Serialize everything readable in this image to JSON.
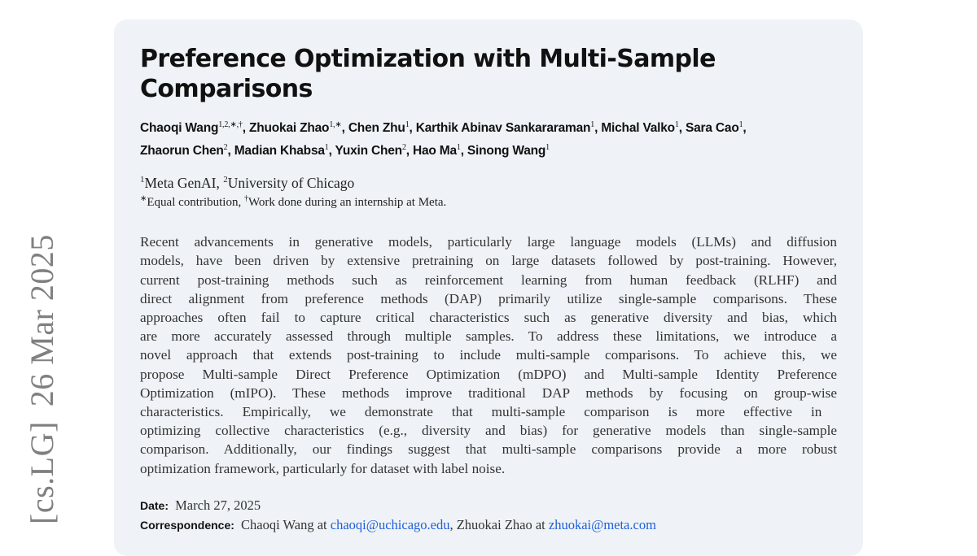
{
  "arxiv_stamp": {
    "category": "[cs.LG]",
    "date": "26 Mar 2025"
  },
  "title_lines": [
    "Preference Optimization with Multi-Sample",
    "Comparisons"
  ],
  "authors": [
    {
      "name": "Chaoqi Wang",
      "sup": "1,2,∗,†"
    },
    {
      "name": "Zhuokai Zhao",
      "sup": "1,∗"
    },
    {
      "name": "Chen Zhu",
      "sup": "1"
    },
    {
      "name": "Karthik Abinav Sankararaman",
      "sup": "1"
    },
    {
      "name": "Michal Valko",
      "sup": "1"
    },
    {
      "name": "Sara Cao",
      "sup": "1"
    },
    {
      "name": "Zhaorun Chen",
      "sup": "2"
    },
    {
      "name": "Madian Khabsa",
      "sup": "1"
    },
    {
      "name": "Yuxin Chen",
      "sup": "2"
    },
    {
      "name": "Hao Ma",
      "sup": "1"
    },
    {
      "name": "Sinong Wang",
      "sup": "1"
    }
  ],
  "affiliations": [
    {
      "sup": "1",
      "name": "Meta GenAI"
    },
    {
      "sup": "2",
      "name": "University of Chicago"
    }
  ],
  "notes": [
    {
      "sup": "∗",
      "text": "Equal contribution"
    },
    {
      "sup": "†",
      "text": "Work done during an internship at Meta."
    }
  ],
  "abstract_lines": [
    "Recent advancements in generative models, particularly large language models (LLMs) and diffusion",
    "models, have been driven by extensive pretraining on large datasets followed by post-training. However,",
    "current post-training methods such as reinforcement learning from human feedback (RLHF) and",
    "direct alignment from preference methods (DAP) primarily utilize single-sample comparisons. These",
    "approaches often fail to capture critical characteristics such as generative diversity and bias, which",
    "are more accurately assessed through multiple samples. To address these limitations, we introduce a",
    "novel approach that extends post-training to include multi-sample comparisons. To achieve this, we",
    "propose Multi-sample Direct Preference Optimization (mDPO) and Multi-sample Identity Preference",
    "Optimization (mIPO). These methods improve traditional DAP methods by focusing on group-wise",
    "characteristics.  Empirically, we demonstrate that multi-sample comparison is more effective in",
    "optimizing collective characteristics (e.g., diversity and bias) for generative models than single-sample",
    "comparison. Additionally, our findings suggest that multi-sample comparisons provide a more robust",
    "optimization framework, particularly for dataset with label noise."
  ],
  "date": {
    "label": "Date:",
    "value": "March 27, 2025"
  },
  "correspondence": {
    "label": "Correspondence:",
    "entries": [
      {
        "prefix": "Chaoqi Wang at ",
        "email": "chaoqi@uchicago.edu"
      },
      {
        "prefix": ", Zhuokai Zhao at ",
        "email": "zhuokai@meta.com"
      }
    ]
  },
  "colors": {
    "card_bg": "#eff3f7",
    "link": "#1f5fd6",
    "stamp": "#808080"
  }
}
